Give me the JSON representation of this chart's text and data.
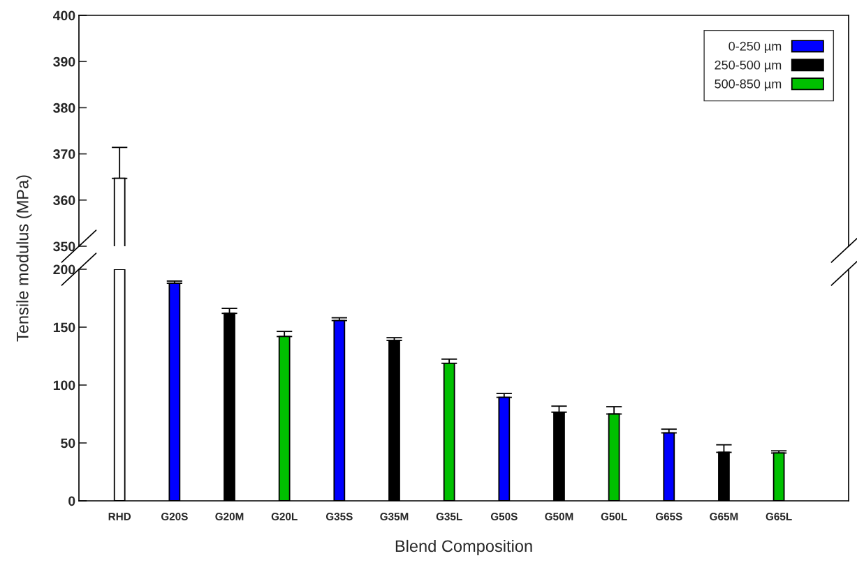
{
  "chart_data": [
    {
      "type": "bar",
      "categories": [
        null,
        null,
        null,
        null,
        null,
        null,
        null,
        null,
        null,
        null,
        null,
        null,
        null
      ],
      "ylim": [
        350,
        400
      ],
      "yticks": [
        350,
        360,
        370,
        380,
        390,
        400
      ],
      "tick_labels": "y",
      "series": [
        {
          "color": "#ffffff",
          "values": [
            364.7,
            null,
            null,
            null,
            null,
            null,
            null,
            null,
            null,
            null,
            null,
            null,
            null
          ],
          "errors": [
            [
              364.7,
              371.4
            ],
            null,
            null,
            null,
            null,
            null,
            null,
            null,
            null,
            null,
            null,
            null,
            null
          ]
        }
      ]
    },
    {
      "type": "bar",
      "categories": [
        "RHD",
        "G20S",
        "G20M",
        "G20L",
        "G35S",
        "G35M",
        "G35L",
        "G50S",
        "G50M",
        "G50L",
        "G65S",
        "G65M",
        "G65L"
      ],
      "ylim": [
        0,
        200
      ],
      "yticks": [
        0,
        50,
        100,
        150,
        200
      ],
      "xlabel": "Blend Composition",
      "ylabel": "Tensile modulus (MPa)",
      "legend": "top right",
      "series": [
        {
          "color": "#ffffff",
          "values": [
            200,
            null,
            null,
            null,
            null,
            null,
            null,
            null,
            null,
            null,
            null,
            null,
            null
          ]
        },
        {
          "name": "0-250 µm",
          "color": "#0000ff",
          "values": [
            null,
            187.9,
            null,
            null,
            155.7,
            null,
            null,
            89.4,
            null,
            null,
            58.7,
            null,
            null
          ],
          "errors": [
            null,
            [
              187.9,
              189.8
            ],
            null,
            null,
            [
              155.7,
              158.1
            ],
            null,
            null,
            [
              89.4,
              92.7
            ],
            null,
            null,
            [
              58.7,
              61.9
            ],
            null,
            null
          ]
        },
        {
          "name": "250-500 µm",
          "color": "#000000",
          "values": [
            null,
            null,
            161.9,
            null,
            null,
            138.5,
            null,
            null,
            76.6,
            null,
            null,
            41.9,
            null
          ],
          "errors": [
            null,
            null,
            [
              161.9,
              166.2
            ],
            null,
            null,
            [
              138.5,
              140.9
            ],
            null,
            null,
            [
              76.6,
              81.8
            ],
            null,
            null,
            [
              41.9,
              48.4
            ],
            null
          ]
        },
        {
          "name": "500-850 µm",
          "color": "#00c000",
          "values": [
            null,
            null,
            null,
            141.9,
            null,
            null,
            118.8,
            null,
            null,
            75.0,
            null,
            null,
            41.3
          ],
          "errors": [
            null,
            null,
            null,
            [
              141.9,
              146.3
            ],
            null,
            null,
            [
              118.8,
              122.4
            ],
            null,
            null,
            [
              75.0,
              81.3
            ],
            null,
            null,
            [
              41.3,
              43.2
            ]
          ]
        }
      ]
    }
  ]
}
